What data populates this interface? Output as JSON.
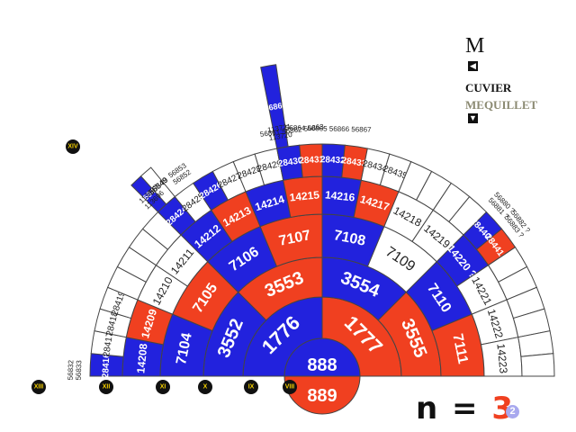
{
  "center": {
    "top": "888",
    "bottom": "889"
  },
  "rings": [
    {
      "cells": [
        {
          "label": "1776",
          "color": "blue"
        },
        {
          "label": "1777",
          "color": "red"
        }
      ]
    },
    {
      "cells": [
        {
          "label": "3552",
          "color": "blue"
        },
        {
          "label": "3553",
          "color": "red"
        },
        {
          "label": "3554",
          "color": "blue"
        },
        {
          "label": "3555",
          "color": "red"
        }
      ]
    },
    {
      "cells": [
        {
          "label": "7104",
          "color": "blue"
        },
        {
          "label": "7105",
          "color": "red"
        },
        {
          "label": "7106",
          "color": "blue"
        },
        {
          "label": "7107",
          "color": "red"
        },
        {
          "label": "7108",
          "color": "blue"
        },
        {
          "label": "7109",
          "color": "white"
        },
        {
          "label": "7110",
          "color": "blue"
        },
        {
          "label": "7111",
          "color": "red"
        }
      ]
    },
    {
      "cells": [
        {
          "label": "14208",
          "color": "blue"
        },
        {
          "label": "14209",
          "color": "red"
        },
        {
          "label": "14210",
          "color": "white"
        },
        {
          "label": "14211",
          "color": "white"
        },
        {
          "label": "14212",
          "color": "blue"
        },
        {
          "label": "14213",
          "color": "red"
        },
        {
          "label": "14214",
          "color": "blue"
        },
        {
          "label": "14215",
          "color": "red"
        },
        {
          "label": "14216",
          "color": "blue"
        },
        {
          "label": "14217",
          "color": "red"
        },
        {
          "label": "14218",
          "color": "white"
        },
        {
          "label": "14219",
          "color": "white"
        },
        {
          "label": "14220 ?",
          "color": "blue"
        },
        {
          "label": "14221",
          "color": "white"
        },
        {
          "label": "14222",
          "color": "white"
        },
        {
          "label": "14223",
          "color": "white"
        }
      ]
    },
    {
      "cells": [
        {
          "label": "28416",
          "color": "blue"
        },
        {
          "label": "28417",
          "color": "white"
        },
        {
          "label": "28418",
          "color": "white"
        },
        {
          "label": "28419",
          "color": "white"
        },
        {
          "label": "",
          "color": "white"
        },
        {
          "label": "",
          "color": "white"
        },
        {
          "label": "",
          "color": "white"
        },
        {
          "label": "",
          "color": "white"
        },
        {
          "label": "28424",
          "color": "blue"
        },
        {
          "label": "28425",
          "color": "white"
        },
        {
          "label": "28426",
          "color": "blue"
        },
        {
          "label": "28427",
          "color": "white"
        },
        {
          "label": "28428",
          "color": "white"
        },
        {
          "label": "28429",
          "color": "white"
        },
        {
          "label": "28430",
          "color": "blue"
        },
        {
          "label": "28431",
          "color": "red"
        },
        {
          "label": "28432",
          "color": "blue"
        },
        {
          "label": "28433",
          "color": "red"
        },
        {
          "label": "28434",
          "color": "white"
        },
        {
          "label": "28435",
          "color": "white"
        },
        {
          "label": "",
          "color": "white"
        },
        {
          "label": "",
          "color": "white"
        },
        {
          "label": "",
          "color": "white"
        },
        {
          "label": "",
          "color": "white"
        },
        {
          "label": "28440?",
          "color": "blue"
        },
        {
          "label": "28441?",
          "color": "red"
        },
        {
          "label": "",
          "color": "white"
        },
        {
          "label": "",
          "color": "white"
        },
        {
          "label": "",
          "color": "white"
        },
        {
          "label": "",
          "color": "white"
        },
        {
          "label": "",
          "color": "white"
        },
        {
          "label": "",
          "color": "white"
        }
      ]
    }
  ],
  "extensions": [
    {
      "label": "56848",
      "color": "blue",
      "ring": "6",
      "slot": "16"
    },
    {
      "label": "56849",
      "color": "white",
      "ring": "6",
      "slot": "17"
    },
    {
      "label": "56860",
      "color": "blue",
      "ring": "6",
      "slot": "28",
      "long": true
    }
  ],
  "outer_text": [
    {
      "text": "56832\n56833",
      "slot": "0"
    },
    {
      "text": "113697\n113696",
      "slot": "16"
    },
    {
      "text": "56853\n56852",
      "slot": "19"
    },
    {
      "text": "113721\n113720",
      "slot": "28"
    },
    {
      "text": "56861 56862 56863",
      "slot": "29"
    },
    {
      "text": "56864 56865 56866 56867",
      "slot": "32"
    },
    {
      "text": "56880 ?\n56881 ?",
      "slot": "48"
    },
    {
      "text": "56882 ?\n56883 ?",
      "slot": "50"
    }
  ],
  "generation_markers": [
    {
      "label": "VIII",
      "pos": "8"
    },
    {
      "label": "IX",
      "pos": "9"
    },
    {
      "label": "X",
      "pos": "10"
    },
    {
      "label": "XI",
      "pos": "11"
    },
    {
      "label": "XII",
      "pos": "12"
    },
    {
      "label": "XIII",
      "pos": "13"
    },
    {
      "label": "XIV",
      "pos": "14"
    }
  ],
  "side": {
    "m_letter": "M",
    "cuvier": "CUVIER",
    "mequillet": "MEQUILLET",
    "nav_up_icon": "arrow-left-icon",
    "nav_down_icon": "arrow-down-icon"
  },
  "formula": {
    "prefix": "n =",
    "value": "3",
    "badge": "2"
  },
  "colors": {
    "blue": "#2222dd",
    "red": "#f04020",
    "white": "#ffffff",
    "stroke": "#444444",
    "marker": "#111111",
    "marker_text": "#f5d000"
  }
}
